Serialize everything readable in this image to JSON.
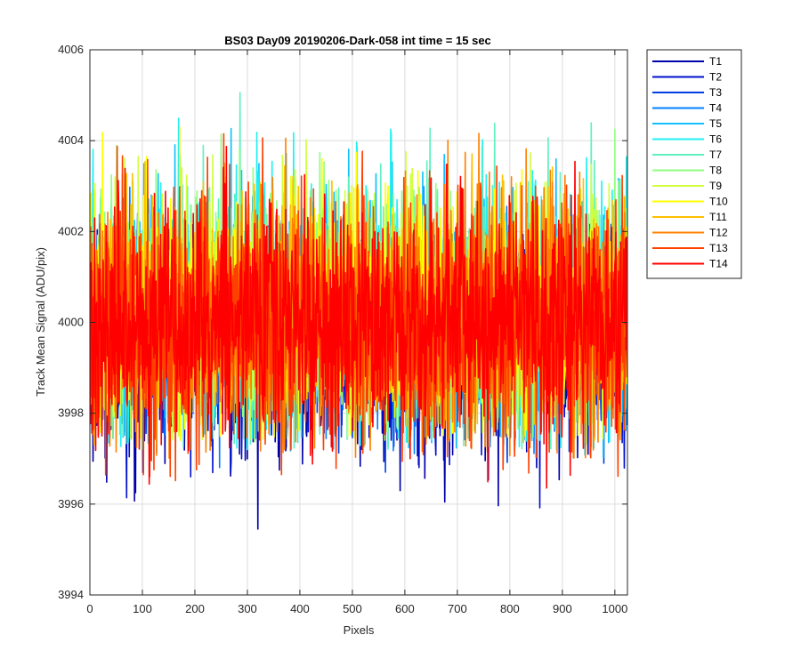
{
  "chart_data": {
    "type": "line",
    "title": "BS03 Day09 20190206-Dark-058 int time = 15 sec",
    "xlabel": "Pixels",
    "ylabel": "Track Mean Signal (ADU/pix)",
    "xlim": [
      0,
      1024
    ],
    "ylim": [
      3994,
      4006
    ],
    "xticks": [
      0,
      100,
      200,
      300,
      400,
      500,
      600,
      700,
      800,
      900,
      1000
    ],
    "yticks": [
      3994,
      3996,
      3998,
      4000,
      4002,
      4004,
      4006
    ],
    "grid": true,
    "legend_position": "outside-top-right",
    "n_points_per_series": 1024,
    "series": [
      {
        "name": "T1",
        "color": "#0000aa",
        "mean": 3999.5,
        "min": 3994.8,
        "max": 4002.0
      },
      {
        "name": "T2",
        "color": "#0010cc",
        "mean": 3999.6,
        "min": 3995.3,
        "max": 4002.2
      },
      {
        "name": "T3",
        "color": "#0040e0",
        "mean": 3999.8,
        "min": 3996.5,
        "max": 4002.6
      },
      {
        "name": "T4",
        "color": "#0080ff",
        "mean": 4000.0,
        "min": 3996.8,
        "max": 4003.2
      },
      {
        "name": "T5",
        "color": "#10c0ff",
        "mean": 4000.2,
        "min": 3997.0,
        "max": 4004.6
      },
      {
        "name": "T6",
        "color": "#20f0f0",
        "mean": 4000.3,
        "min": 3997.2,
        "max": 4005.6
      },
      {
        "name": "T7",
        "color": "#60f0c0",
        "mean": 4000.3,
        "min": 3997.2,
        "max": 4005.2
      },
      {
        "name": "T8",
        "color": "#90ff80",
        "mean": 4000.3,
        "min": 3997.3,
        "max": 4005.0
      },
      {
        "name": "T9",
        "color": "#d0ff40",
        "mean": 4000.2,
        "min": 3997.4,
        "max": 4004.8
      },
      {
        "name": "T10",
        "color": "#ffff00",
        "mean": 4000.2,
        "min": 3997.4,
        "max": 4004.6
      },
      {
        "name": "T11",
        "color": "#ffc000",
        "mean": 4000.2,
        "min": 3997.3,
        "max": 4004.4
      },
      {
        "name": "T12",
        "color": "#ff8000",
        "mean": 4000.1,
        "min": 3997.0,
        "max": 4005.4
      },
      {
        "name": "T13",
        "color": "#ff4000",
        "mean": 4000.0,
        "min": 3996.5,
        "max": 4004.6
      },
      {
        "name": "T14",
        "color": "#ff0000",
        "mean": 4000.0,
        "min": 3996.2,
        "max": 4004.0
      }
    ]
  }
}
